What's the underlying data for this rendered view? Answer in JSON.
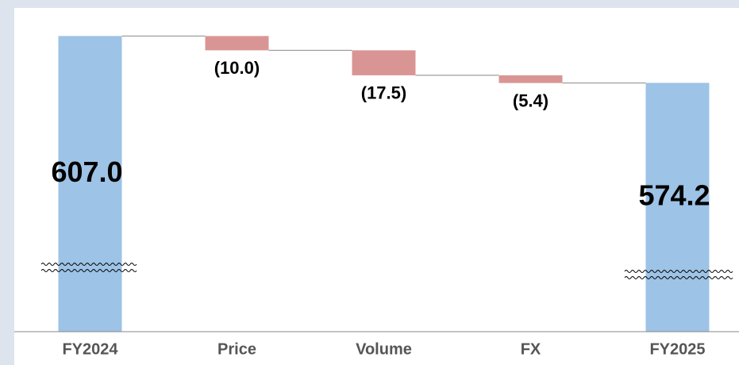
{
  "chart_data": {
    "type": "waterfall",
    "categories": [
      "FY2024",
      "Price",
      "Volume",
      "FX",
      "FY2025"
    ],
    "values": [
      607.0,
      -10.0,
      -17.5,
      -5.4,
      574.2
    ],
    "value_labels": [
      "607.0",
      "(10.0)",
      "(17.5)",
      "(5.4)",
      "574.2"
    ],
    "color": "#9dc3e6",
    "negative_color": "#d99594",
    "ylim": [
      400,
      620
    ]
  }
}
